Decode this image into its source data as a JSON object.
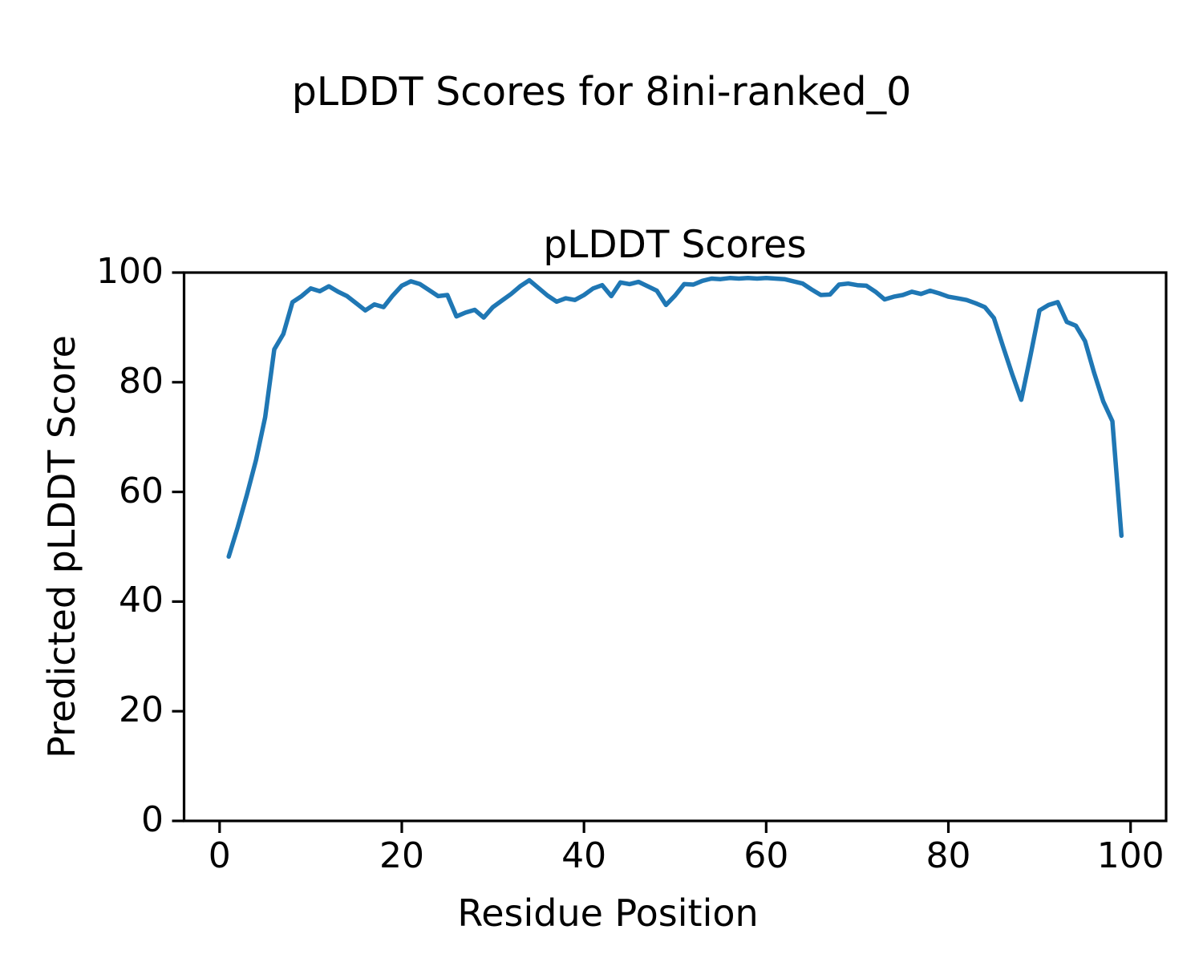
{
  "figure": {
    "suptitle": "pLDDT Scores for 8ini-ranked_0",
    "background_color": "#ffffff",
    "text_color": "#000000"
  },
  "chart_data": {
    "type": "line",
    "title": "pLDDT Scores",
    "xlabel": "Residue Position",
    "ylabel": "Predicted pLDDT Score",
    "legend": "none",
    "grid": false,
    "line_color": "#1f77b4",
    "axis_color": "#000000",
    "xlim": [
      -3.9,
      103.9
    ],
    "ylim": [
      0,
      100
    ],
    "x_tick_labels": [
      "0",
      "20",
      "40",
      "60",
      "80",
      "100"
    ],
    "x_tick_values": [
      0,
      20,
      40,
      60,
      80,
      100
    ],
    "y_tick_labels": [
      "0",
      "20",
      "40",
      "60",
      "80",
      "100"
    ],
    "y_tick_values": [
      0,
      20,
      40,
      60,
      80,
      100
    ],
    "series": [
      {
        "name": "pLDDT",
        "x_start": 1,
        "x_step": 1,
        "values": [
          48.2,
          53.6,
          59.5,
          65.8,
          73.6,
          86.0,
          88.8,
          94.6,
          95.7,
          97.1,
          96.6,
          97.5,
          96.5,
          95.7,
          94.4,
          93.1,
          94.2,
          93.7,
          95.8,
          97.6,
          98.4,
          97.9,
          96.8,
          95.7,
          95.9,
          92.0,
          92.7,
          93.2,
          91.8,
          93.7,
          94.9,
          96.1,
          97.5,
          98.6,
          97.2,
          95.8,
          94.7,
          95.3,
          95.0,
          95.9,
          97.1,
          97.7,
          95.7,
          98.2,
          97.9,
          98.3,
          97.5,
          96.7,
          94.1,
          95.8,
          97.9,
          97.8,
          98.5,
          98.9,
          98.8,
          99.0,
          98.9,
          99.0,
          98.9,
          99.0,
          98.9,
          98.8,
          98.4,
          98.0,
          96.9,
          95.9,
          96.0,
          97.8,
          98.0,
          97.7,
          97.6,
          96.5,
          95.1,
          95.6,
          95.9,
          96.5,
          96.1,
          96.7,
          96.2,
          95.6,
          95.3,
          95.0,
          94.4,
          93.7,
          91.7,
          86.5,
          81.5,
          76.8,
          84.8,
          93.1,
          94.1,
          94.6,
          91.0,
          90.3,
          87.5,
          81.7,
          76.5,
          72.9,
          52.0
        ]
      }
    ]
  }
}
